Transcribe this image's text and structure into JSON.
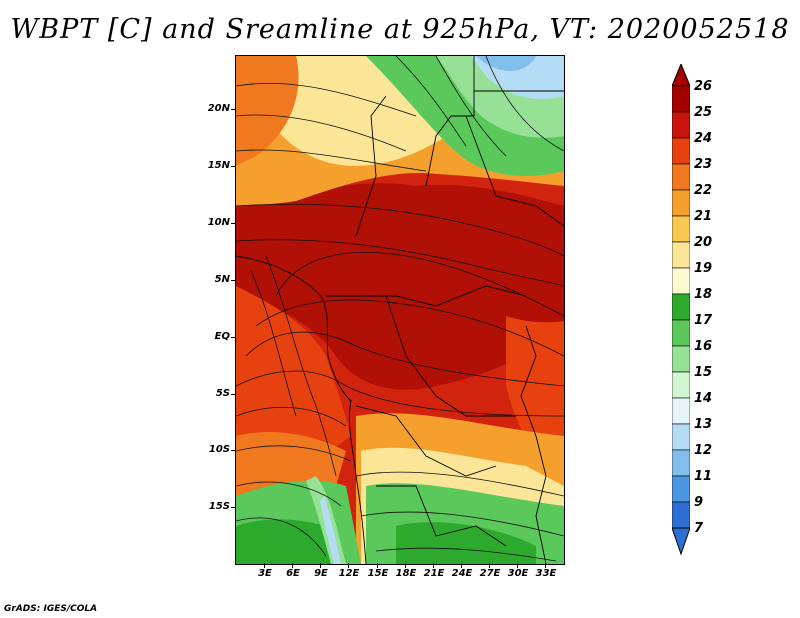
{
  "title": "WBPT [C] and Sreamline at 925hPa, VT: 2020052518",
  "map": {
    "lat_labels": [
      "20N",
      "15N",
      "10N",
      "5N",
      "EQ",
      "5S",
      "10S",
      "15S"
    ],
    "lon_labels": [
      "3E",
      "6E",
      "9E",
      "12E",
      "15E",
      "18E",
      "21E",
      "24E",
      "27E",
      "30E",
      "33E"
    ]
  },
  "colorbar": {
    "labels": [
      "26",
      "25",
      "24",
      "23",
      "22",
      "21",
      "20",
      "19",
      "18",
      "17",
      "16",
      "15",
      "14",
      "13",
      "12",
      "11",
      "9",
      "7"
    ],
    "colors": {
      "dark_red": "#a50000",
      "red": "#c8140a",
      "orange_red": "#e6410f",
      "orange": "#f0781e",
      "light_orange": "#f5a02d",
      "gold": "#f8c850",
      "pale_yellow": "#fae696",
      "cream": "#fdfad2",
      "green_dark": "#2daa2d",
      "green": "#5ac85a",
      "green_light": "#96e196",
      "mint": "#d2f5d2",
      "sky_pale": "#e6f5fa",
      "sky": "#b4dcf5",
      "blue_light": "#82beeb",
      "blue": "#4b96e1",
      "blue_dark": "#2d6ed2"
    }
  },
  "credit": "GrADS: IGES/COLA"
}
